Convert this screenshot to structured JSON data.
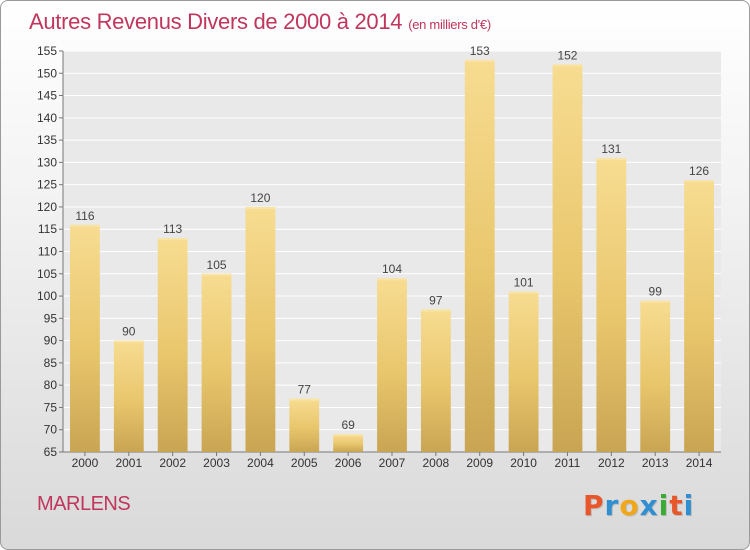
{
  "chart_data": {
    "type": "bar",
    "title": "Autres Revenus Divers de 2000 à 2014",
    "subtitle": "(en milliers d'€)",
    "categories": [
      "2000",
      "2001",
      "2002",
      "2003",
      "2004",
      "2005",
      "2006",
      "2007",
      "2008",
      "2009",
      "2010",
      "2011",
      "2012",
      "2013",
      "2014"
    ],
    "values": [
      116,
      90,
      113,
      105,
      120,
      77,
      69,
      104,
      97,
      153,
      101,
      152,
      131,
      99,
      126
    ],
    "xlabel": "",
    "ylabel": "",
    "ylim": [
      65,
      155
    ],
    "yticks": [
      65,
      70,
      75,
      80,
      85,
      90,
      95,
      100,
      105,
      110,
      115,
      120,
      125,
      130,
      135,
      140,
      145,
      150,
      155
    ],
    "grid": true,
    "bar_color": "#e8c66c",
    "title_color": "#c0365d"
  },
  "footer": {
    "place": "MARLENS",
    "logo_text": "Proxiti",
    "logo_colors": [
      "#e8572b",
      "#2f8fd0",
      "#f0a81a",
      "#2f8fd0",
      "#3aaa35",
      "#e8572b",
      "#2f8fd0"
    ]
  }
}
